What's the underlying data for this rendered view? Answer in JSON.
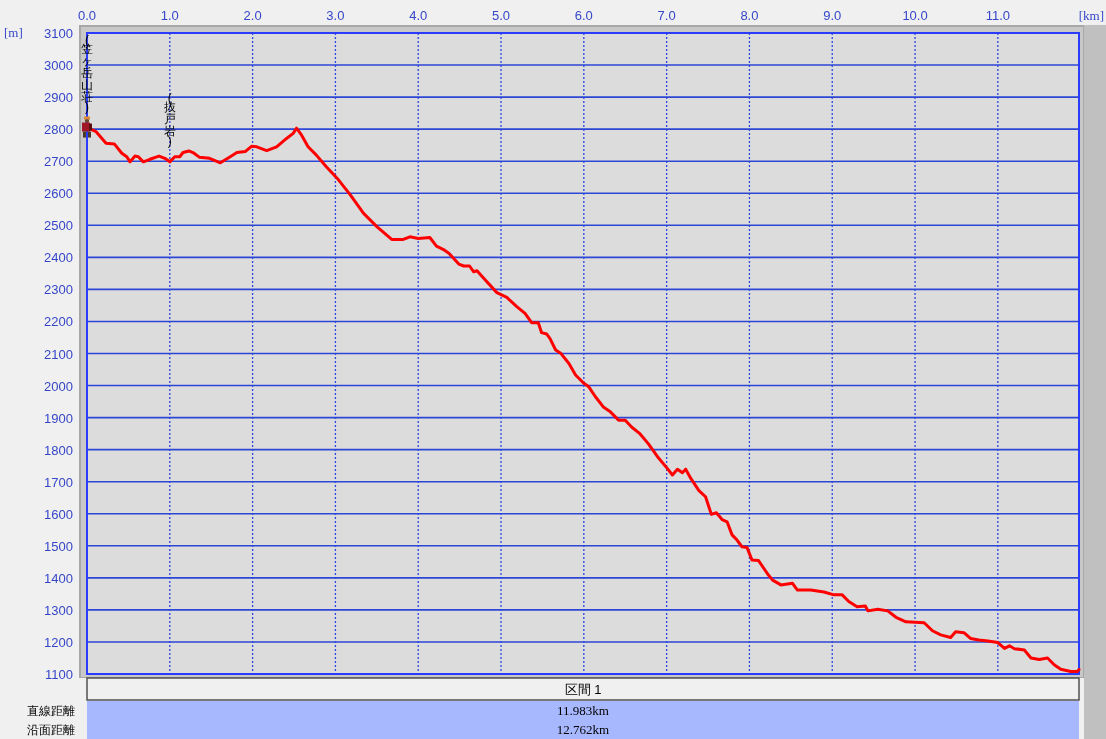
{
  "chart_data": {
    "type": "line",
    "xlabel": "[km]",
    "ylabel": "[m]",
    "xlim": [
      0,
      11.98
    ],
    "ylim": [
      1100,
      3100
    ],
    "xticks": [
      {
        "value": 0,
        "label": "0.0"
      },
      {
        "value": 1,
        "label": "1.0"
      },
      {
        "value": 2,
        "label": "2.0"
      },
      {
        "value": 3,
        "label": "3.0"
      },
      {
        "value": 4,
        "label": "4.0"
      },
      {
        "value": 5,
        "label": "5.0"
      },
      {
        "value": 6,
        "label": "6.0"
      },
      {
        "value": 7,
        "label": "7.0"
      },
      {
        "value": 8,
        "label": "8.0"
      },
      {
        "value": 9,
        "label": "9.0"
      },
      {
        "value": 10,
        "label": "10.0"
      },
      {
        "value": 11,
        "label": "11.0"
      }
    ],
    "yticks": [
      1100,
      1200,
      1300,
      1400,
      1500,
      1600,
      1700,
      1800,
      1900,
      2000,
      2100,
      2200,
      2300,
      2400,
      2500,
      2600,
      2700,
      2800,
      2900,
      3000,
      3100
    ],
    "grid": true,
    "x": [
      0,
      0.11,
      0.23,
      0.33,
      0.42,
      0.48,
      0.52,
      0.58,
      0.62,
      0.68,
      0.76,
      0.87,
      0.94,
      1.0,
      1.06,
      1.12,
      1.16,
      1.23,
      1.28,
      1.36,
      1.48,
      1.61,
      1.73,
      1.81,
      1.91,
      1.99,
      2.05,
      2.17,
      2.29,
      2.41,
      2.49,
      2.53,
      2.59,
      2.67,
      2.77,
      2.89,
      3.02,
      3.18,
      3.34,
      3.5,
      3.68,
      3.82,
      3.9,
      4.0,
      4.14,
      4.22,
      4.3,
      4.37,
      4.49,
      4.55,
      4.62,
      4.67,
      4.71,
      4.81,
      4.95,
      5.07,
      5.19,
      5.29,
      5.37,
      5.45,
      5.49,
      5.55,
      5.59,
      5.66,
      5.72,
      5.82,
      5.9,
      6.0,
      6.06,
      6.14,
      6.24,
      6.32,
      6.42,
      6.5,
      6.58,
      6.68,
      6.78,
      6.89,
      6.99,
      7.07,
      7.13,
      7.19,
      7.23,
      7.29,
      7.39,
      7.47,
      7.54,
      7.6,
      7.67,
      7.73,
      7.79,
      7.85,
      7.91,
      7.97,
      8.03,
      8.11,
      8.22,
      8.28,
      8.38,
      8.52,
      8.58,
      8.74,
      8.9,
      9.02,
      9.12,
      9.2,
      9.3,
      9.4,
      9.43,
      9.55,
      9.67,
      9.77,
      9.89,
      10.11,
      10.21,
      10.31,
      10.43,
      10.49,
      10.59,
      10.67,
      10.77,
      10.88,
      11.0,
      11.08,
      11.14,
      11.2,
      11.32,
      11.4,
      11.5,
      11.6,
      11.68,
      11.76,
      11.88,
      11.96,
      11.98
    ],
    "series": [
      {
        "color": "#ff0000",
        "values": [
          2805,
          2792,
          2756,
          2754,
          2725,
          2714,
          2698,
          2716,
          2714,
          2698,
          2706,
          2716,
          2709,
          2698,
          2714,
          2714,
          2727,
          2732,
          2727,
          2712,
          2709,
          2695,
          2714,
          2727,
          2730,
          2747,
          2745,
          2733,
          2745,
          2771,
          2787,
          2803,
          2782,
          2745,
          2719,
          2683,
          2647,
          2595,
          2537,
          2496,
          2456,
          2456,
          2464,
          2459,
          2462,
          2435,
          2425,
          2413,
          2379,
          2373,
          2373,
          2355,
          2358,
          2329,
          2290,
          2275,
          2246,
          2225,
          2196,
          2196,
          2165,
          2161,
          2147,
          2111,
          2101,
          2069,
          2033,
          2007,
          1996,
          1965,
          1932,
          1918,
          1892,
          1892,
          1870,
          1849,
          1818,
          1778,
          1747,
          1721,
          1739,
          1728,
          1739,
          1711,
          1672,
          1653,
          1598,
          1603,
          1582,
          1575,
          1534,
          1518,
          1497,
          1495,
          1456,
          1454,
          1412,
          1393,
          1378,
          1383,
          1362,
          1362,
          1356,
          1347,
          1347,
          1326,
          1310,
          1312,
          1297,
          1302,
          1297,
          1277,
          1263,
          1260,
          1235,
          1222,
          1214,
          1232,
          1229,
          1211,
          1206,
          1203,
          1198,
          1180,
          1188,
          1179,
          1175,
          1150,
          1145,
          1150,
          1129,
          1115,
          1108,
          1108,
          1114
        ]
      }
    ],
    "annotations": [
      {
        "text": "(笠ヶ岳山荘)",
        "x": 0,
        "y": 2805
      },
      {
        "text": "(抜戸岩)",
        "x": 1.0,
        "y": 2698
      },
      "区間 1",
      "直線距離",
      "11.983km",
      "沿面距離",
      "12.762km"
    ]
  }
}
